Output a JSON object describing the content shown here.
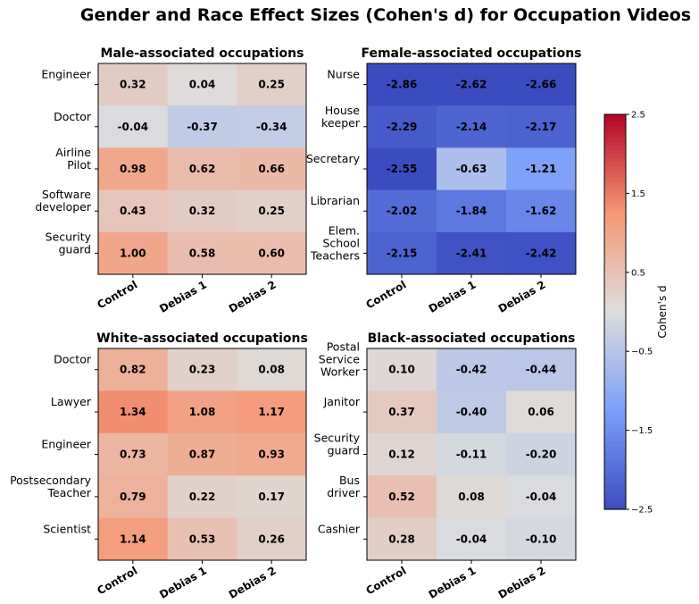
{
  "chart_data": {
    "type": "heatmap",
    "title": "Gender and Race Effect Sizes (Cohen's d) for Occupation Videos",
    "colorbar": {
      "label": "Cohen's d",
      "vmin": -2.5,
      "vmax": 2.5,
      "ticks": [
        "2.5",
        "1.5",
        "0.5",
        "−0.5",
        "−1.5",
        "−2.5"
      ],
      "colormap": "coolwarm"
    },
    "panels": [
      {
        "title": "Male-associated occupations",
        "columns": [
          "Control",
          "Debias 1",
          "Debias 2"
        ],
        "rows": [
          {
            "label": [
              "Engineer"
            ],
            "values": [
              0.32,
              0.04,
              0.25
            ]
          },
          {
            "label": [
              "Doctor"
            ],
            "values": [
              -0.04,
              -0.37,
              -0.34
            ]
          },
          {
            "label": [
              "Airline",
              "Pilot"
            ],
            "values": [
              0.98,
              0.62,
              0.66
            ]
          },
          {
            "label": [
              "Software",
              "developer"
            ],
            "values": [
              0.43,
              0.32,
              0.25
            ]
          },
          {
            "label": [
              "Security",
              "guard"
            ],
            "values": [
              1.0,
              0.58,
              0.6
            ]
          }
        ]
      },
      {
        "title": "Female-associated occupations",
        "columns": [
          "Control",
          "Debias 1",
          "Debias 2"
        ],
        "rows": [
          {
            "label": [
              "Nurse"
            ],
            "values": [
              -2.86,
              -2.62,
              -2.66
            ]
          },
          {
            "label": [
              "House",
              "keeper"
            ],
            "values": [
              -2.29,
              -2.14,
              -2.17
            ]
          },
          {
            "label": [
              "Secretary"
            ],
            "values": [
              -2.55,
              -0.63,
              -1.21
            ]
          },
          {
            "label": [
              "Librarian"
            ],
            "values": [
              -2.02,
              -1.84,
              -1.62
            ]
          },
          {
            "label": [
              "Elem.",
              "School",
              "Teachers"
            ],
            "values": [
              -2.15,
              -2.41,
              -2.42
            ]
          }
        ]
      },
      {
        "title": "White-associated occupations",
        "columns": [
          "Control",
          "Debias 1",
          "Debias 2"
        ],
        "rows": [
          {
            "label": [
              "Doctor"
            ],
            "values": [
              0.82,
              0.23,
              0.08
            ]
          },
          {
            "label": [
              "Lawyer"
            ],
            "values": [
              1.34,
              1.08,
              1.17
            ]
          },
          {
            "label": [
              "Engineer"
            ],
            "values": [
              0.73,
              0.87,
              0.93
            ]
          },
          {
            "label": [
              "Postsecondary",
              "Teacher"
            ],
            "values": [
              0.79,
              0.22,
              0.17
            ]
          },
          {
            "label": [
              "Scientist"
            ],
            "values": [
              1.14,
              0.53,
              0.26
            ]
          }
        ]
      },
      {
        "title": "Black-associated occupations",
        "columns": [
          "Control",
          "Debias 1",
          "Debias 2"
        ],
        "rows": [
          {
            "label": [
              "Postal",
              "Service",
              "Worker"
            ],
            "values": [
              0.1,
              -0.42,
              -0.44
            ]
          },
          {
            "label": [
              "Janitor"
            ],
            "values": [
              0.37,
              -0.4,
              0.06
            ]
          },
          {
            "label": [
              "Security",
              "guard"
            ],
            "values": [
              0.12,
              -0.11,
              -0.2
            ]
          },
          {
            "label": [
              "Bus",
              "driver"
            ],
            "values": [
              0.52,
              0.08,
              -0.04
            ]
          },
          {
            "label": [
              "Cashier"
            ],
            "values": [
              0.28,
              -0.04,
              -0.1
            ]
          }
        ]
      }
    ]
  }
}
